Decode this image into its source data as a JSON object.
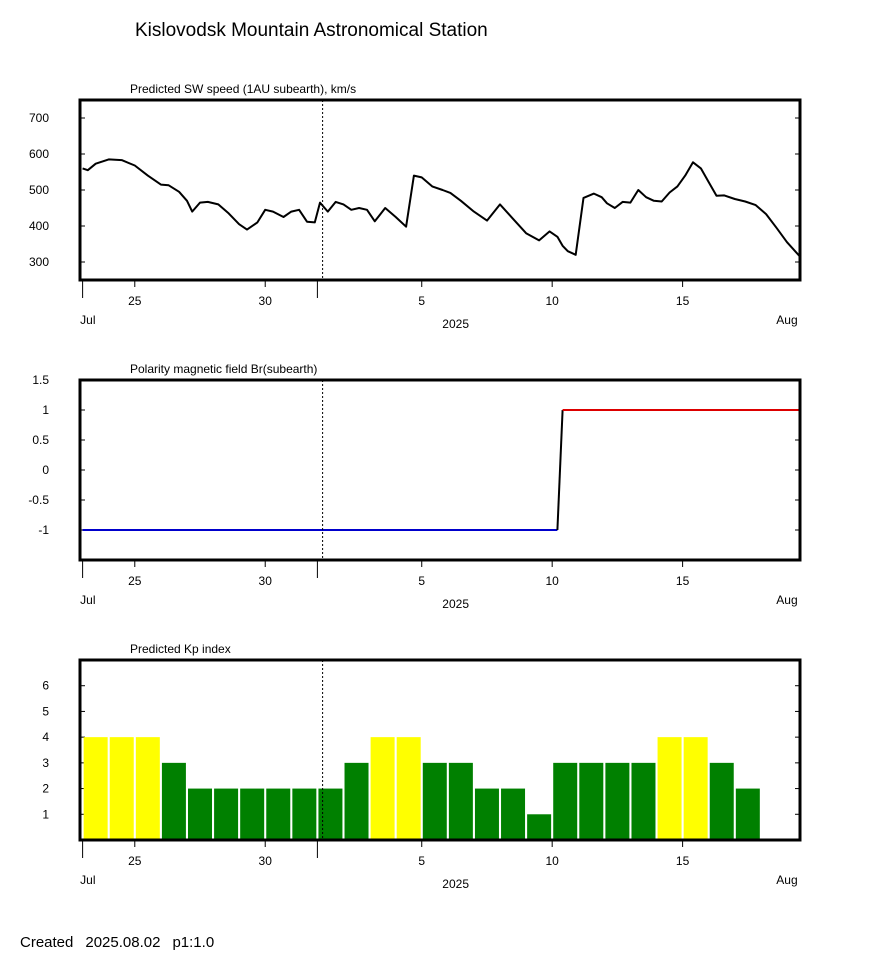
{
  "title": "Kislovodsk Mountain Astronomical Station",
  "footer": {
    "created_label": "Created",
    "created_date": "2025.08.02",
    "page": "p1:1.0"
  },
  "x_axis": {
    "start_day": 22.9,
    "end_day": 50.5,
    "major_ticks": [
      {
        "day": 25,
        "label": "25"
      },
      {
        "day": 30,
        "label": "30"
      },
      {
        "day": 36,
        "label": "5"
      },
      {
        "day": 41,
        "label": "10"
      },
      {
        "day": 46,
        "label": "15"
      }
    ],
    "minor_ticks": [
      23,
      32
    ],
    "month_labels": [
      {
        "day": 23.2,
        "label": "Jul"
      },
      {
        "day": 50.0,
        "label": "Aug"
      }
    ],
    "year_label": {
      "day": 37.3,
      "label": "2025"
    },
    "current_day": 32.2
  },
  "chart_data": [
    {
      "type": "line",
      "title": "Predicted SW speed (1AU subearth), km/s",
      "ylim": [
        250,
        750
      ],
      "yticks": [
        300,
        400,
        500,
        600,
        700
      ],
      "ytick_labels": [
        "300",
        "400",
        "500",
        "600",
        "700"
      ],
      "series": [
        {
          "color": "#000000",
          "x": [
            23.0,
            23.2,
            23.5,
            24.0,
            24.5,
            25.0,
            25.5,
            26.0,
            26.3,
            26.7,
            27.0,
            27.2,
            27.5,
            27.8,
            28.2,
            28.6,
            29.0,
            29.3,
            29.7,
            30.0,
            30.3,
            30.7,
            31.0,
            31.3,
            31.6,
            31.9,
            32.1,
            32.4,
            32.7,
            33.0,
            33.3,
            33.6,
            33.9,
            34.2,
            34.6,
            35.0,
            35.4,
            35.7,
            36.0,
            36.4,
            36.8,
            37.1,
            37.5,
            38.0,
            38.5,
            39.0,
            39.5,
            40.0,
            40.5,
            40.9,
            41.2,
            41.4,
            41.6,
            41.9,
            42.2,
            42.6,
            42.9,
            43.1,
            43.4,
            43.7,
            44.0,
            44.3,
            44.6,
            44.9,
            45.2,
            45.5,
            45.8,
            46.1,
            46.4,
            46.7,
            47.0,
            47.3,
            47.6,
            48.0,
            48.4,
            48.8,
            49.2,
            49.6,
            50.0,
            50.5
          ],
          "y": [
            560,
            555,
            573,
            585,
            583,
            568,
            540,
            515,
            513,
            495,
            470,
            440,
            465,
            467,
            460,
            435,
            405,
            390,
            410,
            445,
            440,
            425,
            440,
            445,
            412,
            410,
            465,
            440,
            467,
            460,
            445,
            450,
            445,
            413,
            450,
            425,
            398,
            540,
            535,
            510,
            500,
            492,
            470,
            440,
            415,
            460,
            420,
            380,
            360,
            385,
            370,
            345,
            330,
            320,
            478,
            490,
            480,
            463,
            450,
            467,
            465,
            500,
            480,
            470,
            468,
            493,
            510,
            540,
            577,
            560,
            522,
            484,
            485,
            475,
            468,
            458,
            433,
            395,
            355,
            315
          ]
        }
      ]
    },
    {
      "type": "line",
      "title": "Polarity magnetic field  Br(subearth)",
      "ylim": [
        -1.5,
        1.5
      ],
      "yticks": [
        -1,
        -0.5,
        0,
        0.5,
        1,
        1.5
      ],
      "ytick_labels": [
        "-1",
        "-0.5",
        "0",
        "0.5",
        "1",
        "1.5"
      ],
      "series": [
        {
          "color": "#0000cc",
          "x": [
            23.0,
            41.2
          ],
          "y": [
            -1,
            -1
          ]
        },
        {
          "color": "#000000",
          "x": [
            41.2,
            41.4
          ],
          "y": [
            -1,
            1
          ]
        },
        {
          "color": "#dd0000",
          "x": [
            41.4,
            50.5
          ],
          "y": [
            1,
            1
          ]
        }
      ]
    },
    {
      "type": "bar",
      "title": "Predicted Kp index",
      "ylim": [
        0,
        7
      ],
      "yticks": [
        1,
        2,
        3,
        4,
        5,
        6
      ],
      "ytick_labels": [
        "1",
        "2",
        "3",
        "4",
        "5",
        "6"
      ],
      "x": [
        23.5,
        24.5,
        25.5,
        26.5,
        27.5,
        28.5,
        29.5,
        30.5,
        31.5,
        32.5,
        33.5,
        34.5,
        35.5,
        36.5,
        37.5,
        38.5,
        39.5,
        40.5,
        41.5,
        42.5,
        43.5,
        44.5,
        45.5,
        46.5,
        47.5,
        48.5
      ],
      "values": [
        4,
        4,
        4,
        3,
        2,
        2,
        2,
        2,
        2,
        2,
        3,
        4,
        4,
        3,
        3,
        2,
        2,
        1,
        3,
        3,
        3,
        3,
        4,
        4,
        3,
        2
      ],
      "colors": {
        "high": "#ffff00",
        "normal": "#008000"
      },
      "high_threshold": 4
    }
  ]
}
